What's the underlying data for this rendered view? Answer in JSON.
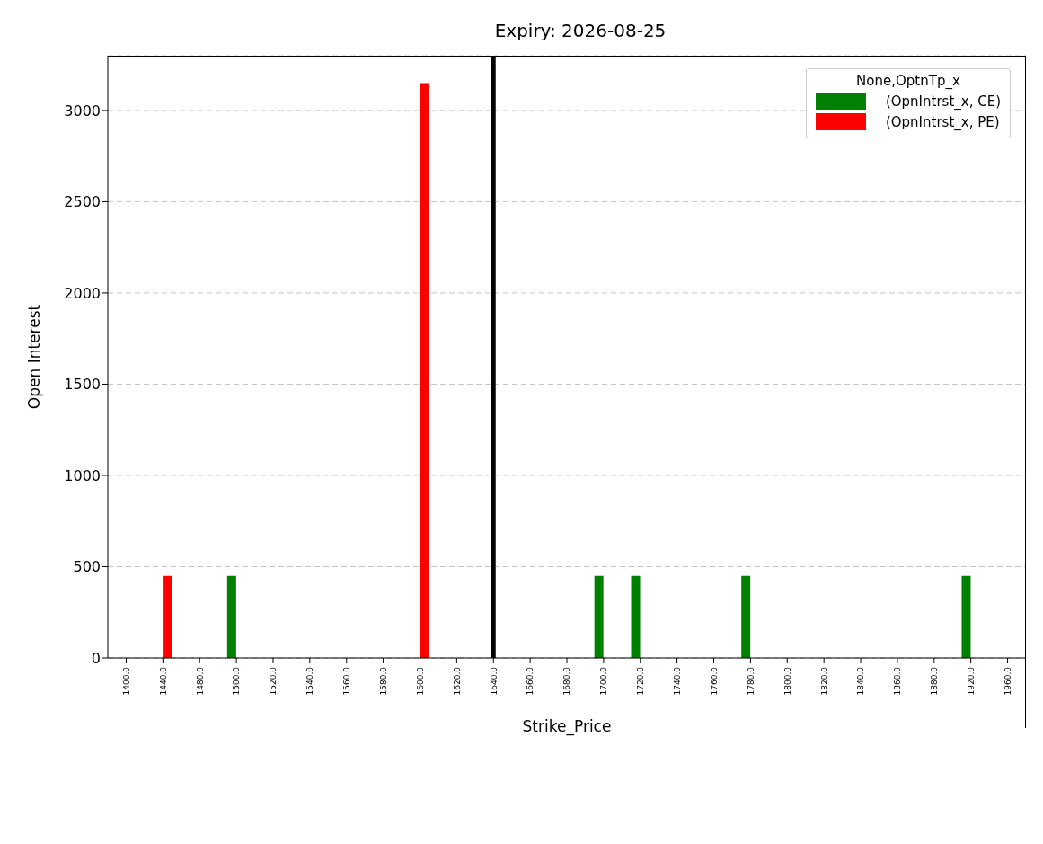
{
  "chart_data": {
    "type": "bar",
    "title": "Expiry: 2026-08-25",
    "xlabel": "Strike_Price",
    "ylabel": "Open Interest",
    "legend_title": "None,OptnTp_x",
    "categories": [
      "1400.0",
      "1440.0",
      "1480.0",
      "1500.0",
      "1520.0",
      "1540.0",
      "1560.0",
      "1580.0",
      "1600.0",
      "1620.0",
      "1640.0",
      "1660.0",
      "1680.0",
      "1700.0",
      "1720.0",
      "1740.0",
      "1760.0",
      "1780.0",
      "1800.0",
      "1820.0",
      "1840.0",
      "1860.0",
      "1880.0",
      "1920.0",
      "1960.0"
    ],
    "series": [
      {
        "name": "(OpnIntrst_x, CE)",
        "color": "#008000",
        "values": [
          null,
          null,
          null,
          450,
          null,
          null,
          null,
          null,
          null,
          null,
          null,
          null,
          null,
          450,
          450,
          null,
          null,
          450,
          null,
          null,
          null,
          null,
          null,
          450,
          null
        ]
      },
      {
        "name": "(OpnIntrst_x, PE)",
        "color": "#ff0000",
        "values": [
          null,
          450,
          null,
          null,
          null,
          null,
          null,
          null,
          3150,
          null,
          null,
          null,
          null,
          null,
          null,
          null,
          null,
          null,
          null,
          null,
          null,
          null,
          null,
          null,
          null
        ]
      }
    ],
    "ylim": [
      0,
      3300
    ],
    "yticks": [
      0,
      500,
      1000,
      1500,
      2000,
      2500,
      3000
    ],
    "grid": "y",
    "legend": "top right",
    "ref_lines": [
      {
        "axis": "x",
        "value": "1640.0",
        "color": "#000000"
      }
    ]
  }
}
